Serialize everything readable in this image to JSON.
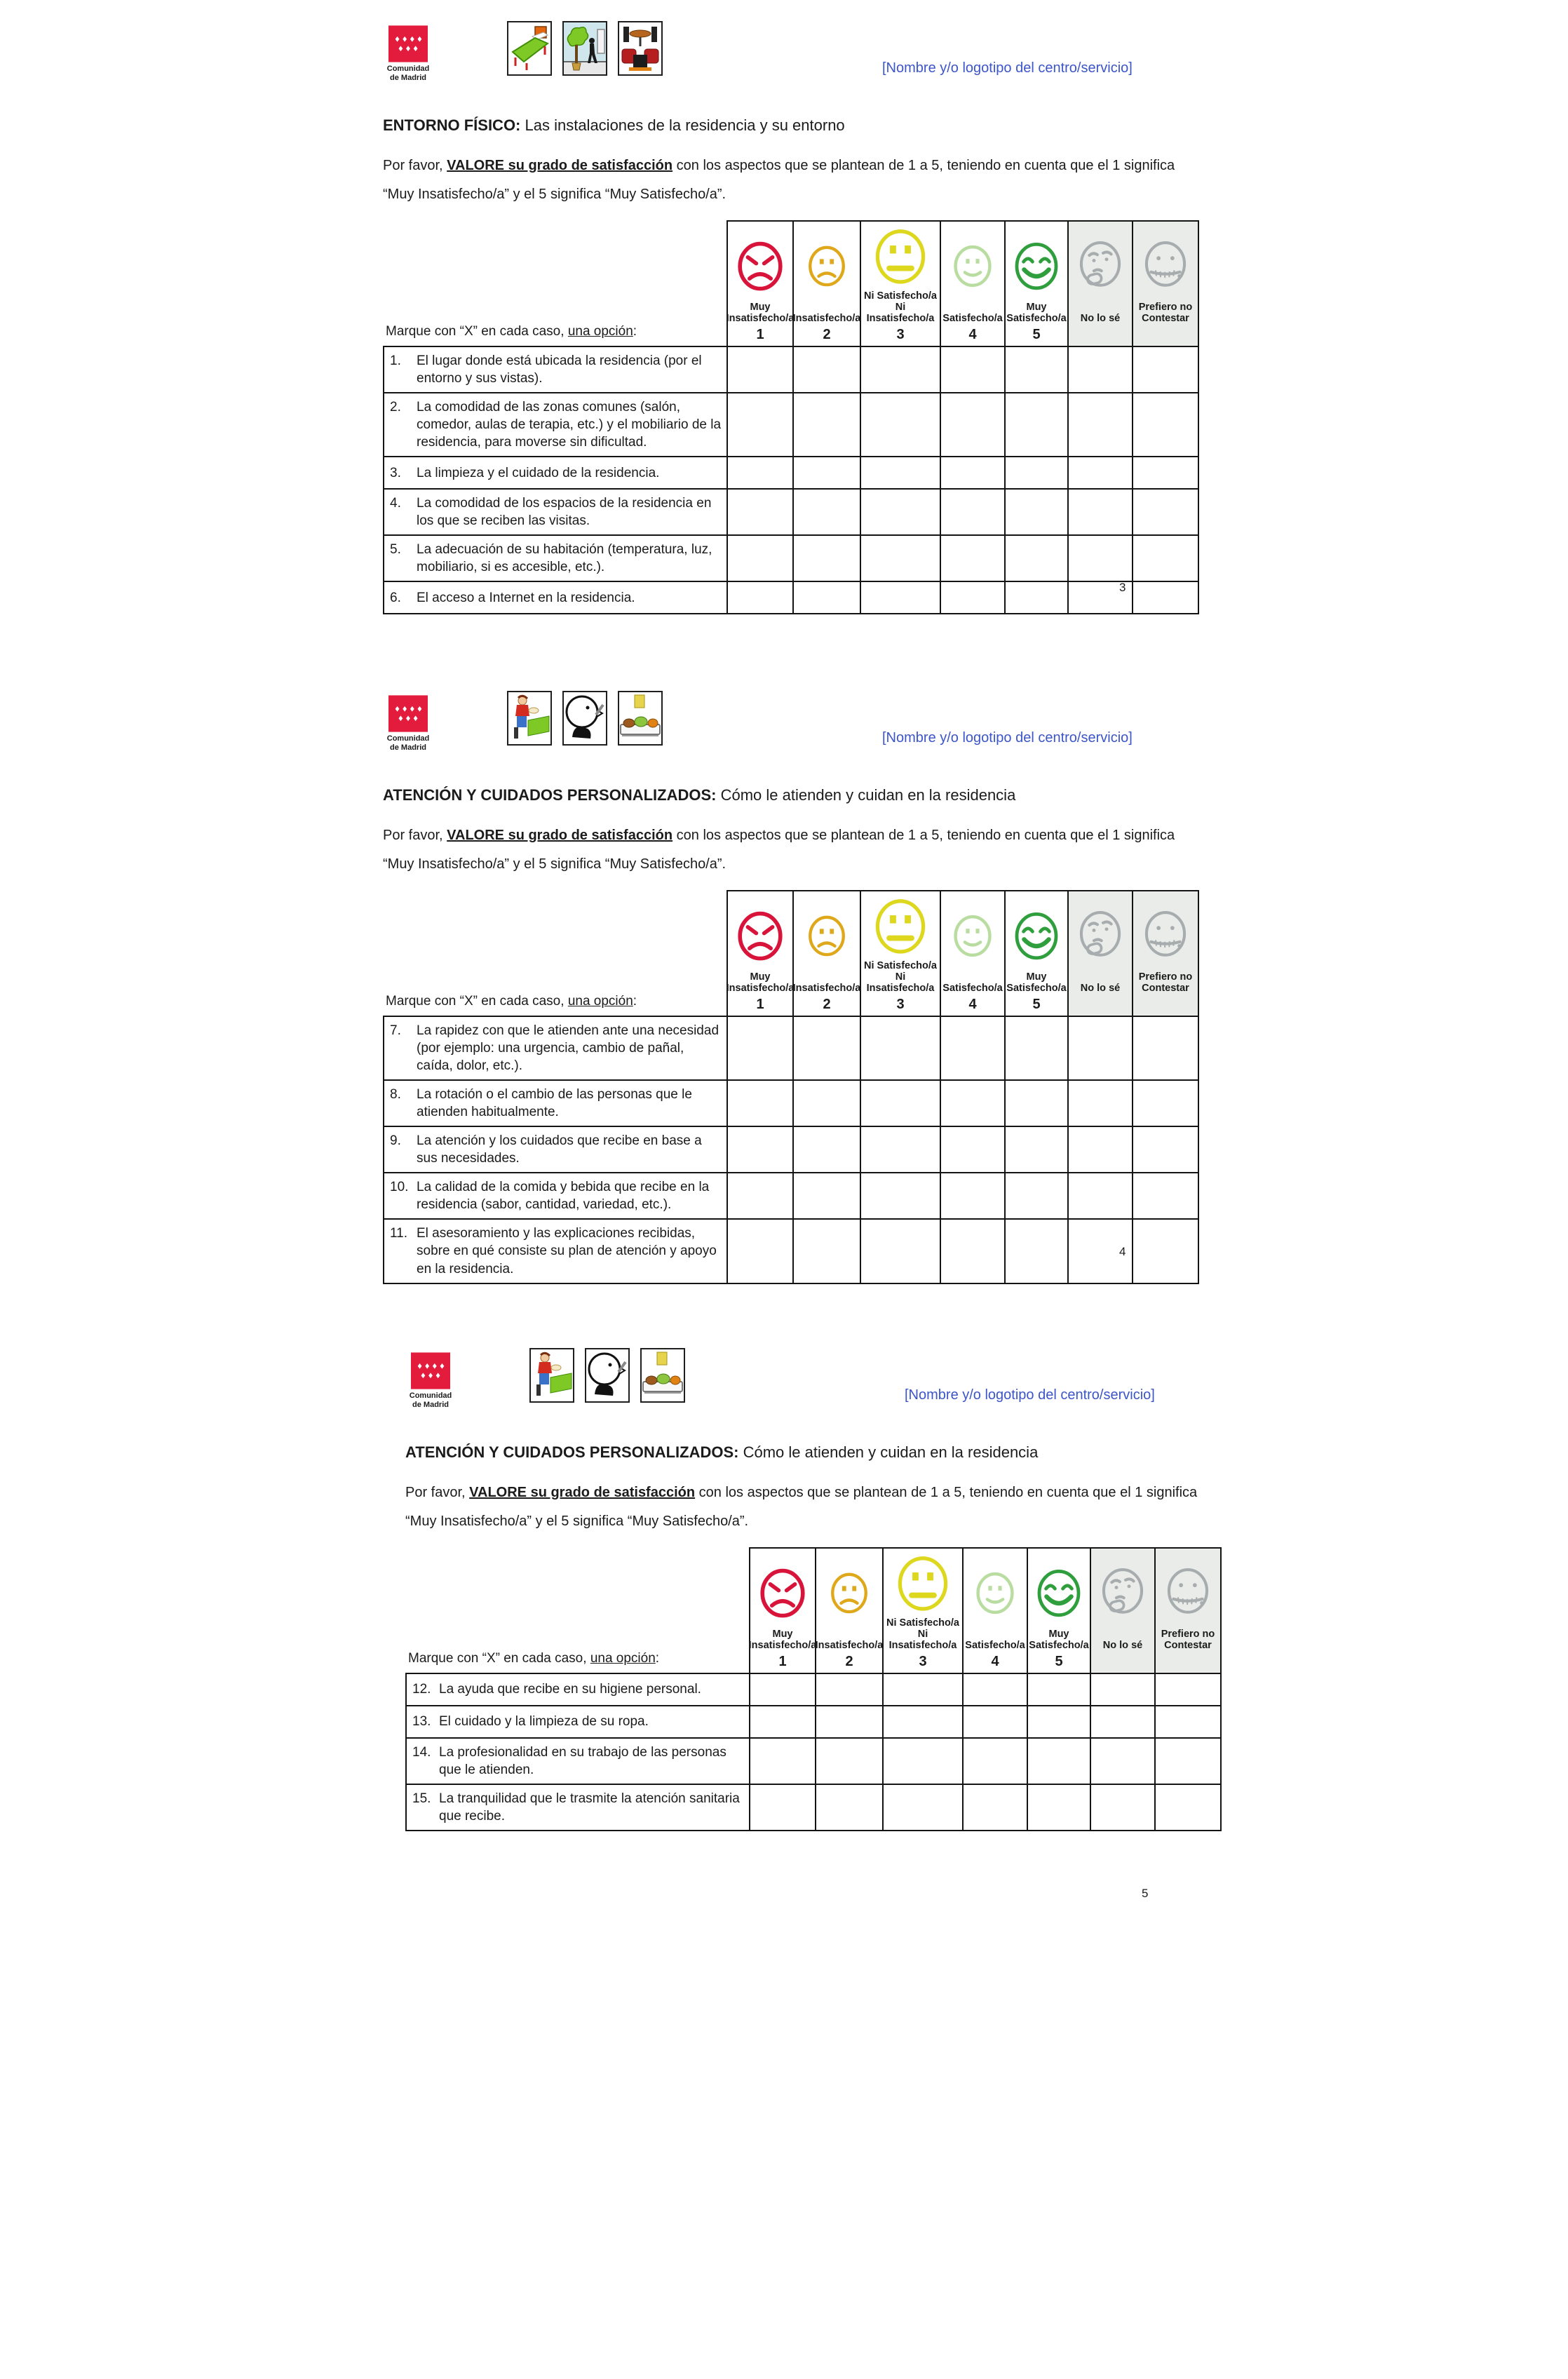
{
  "brand": {
    "name_line1": "Comunidad",
    "name_line2": "de Madrid",
    "flag_color": "#e31b3d"
  },
  "header_note": "[Nombre y/o logotipo del centro/servicio]",
  "header_note_color": "#3c55c8",
  "instructions": {
    "prefix": "Por favor, ",
    "underlined": "VALORE su grado de satisfacción",
    "suffix": " con los aspectos que se plantean de 1 a 5, teniendo en cuenta que el 1 significa “Muy Insatisfecho/a” y el 5 significa “Muy Satisfecho/a”."
  },
  "mark_row": {
    "prefix": "Marque con “X” en cada caso, ",
    "underlined": "una opción",
    "suffix": ":"
  },
  "scale_columns": [
    {
      "icon": "face-angry",
      "color": "#d8143a",
      "label": "Muy\nInsatisfecho/a",
      "number": "1",
      "gray": false
    },
    {
      "icon": "face-sad",
      "color": "#dfa71a",
      "label": "Insatisfecho/a",
      "number": "2",
      "gray": false
    },
    {
      "icon": "face-neutral",
      "color": "#ddd71e",
      "label": "Ni Satisfecho/a\nNi Insatisfecho/a",
      "number": "3",
      "gray": false
    },
    {
      "icon": "face-slight-smile",
      "color": "#b9dda0",
      "label": "Satisfecho/a",
      "number": "4",
      "gray": false
    },
    {
      "icon": "face-grin",
      "color": "#2f9e3c",
      "label": "Muy\nSatisfecho/a",
      "number": "5",
      "gray": false
    },
    {
      "icon": "face-thinking",
      "color": "#a7acae",
      "label": "No lo sé",
      "number": "",
      "gray": true
    },
    {
      "icon": "face-zipper",
      "color": "#a7acae",
      "label": "Prefiero no\nContestar",
      "number": "",
      "gray": true
    }
  ],
  "pages": [
    {
      "page_number": "3",
      "title_bold": "ENTORNO FÍSICO:",
      "title_rest": " Las instalaciones de la residencia y su entorno",
      "pictograms": [
        "picto-bed",
        "picto-outdoor",
        "picto-livingroom"
      ],
      "questions": [
        {
          "num": "1.",
          "text": "El lugar donde está ubicada la residencia (por el entorno y sus vistas)."
        },
        {
          "num": "2.",
          "text": "La comodidad de las zonas comunes (salón, comedor, aulas de terapia, etc.) y el mobiliario de la residencia, para moverse sin dificultad."
        },
        {
          "num": "3.",
          "text": "La limpieza y el cuidado de la residencia."
        },
        {
          "num": "4.",
          "text": "La comodidad de los espacios de la residencia en los que se reciben las visitas."
        },
        {
          "num": "5.",
          "text": "La adecuación de su habitación (temperatura, luz, mobiliario, si es accesible, etc.)."
        },
        {
          "num": "6.",
          "text": "El acceso a Internet en la residencia."
        }
      ]
    },
    {
      "page_number": "4",
      "title_bold": "ATENCIÓN Y CUIDADOS PERSONALIZADOS:",
      "title_rest": " Cómo le atienden y cuidan en la residencia",
      "pictograms": [
        "picto-caregiver",
        "picto-speak",
        "picto-tray"
      ],
      "questions": [
        {
          "num": "7.",
          "text": "La rapidez con que le atienden ante una necesidad (por ejemplo: una urgencia, cambio de pañal, caída, dolor, etc.)."
        },
        {
          "num": "8.",
          "text": "La rotación o el cambio de las personas que le atienden habitualmente."
        },
        {
          "num": "9.",
          "text": "La atención y los cuidados que recibe en base a sus necesidades."
        },
        {
          "num": "10.",
          "text": "La calidad de la comida y bebida que recibe en la residencia (sabor, cantidad, variedad, etc.)."
        },
        {
          "num": "11.",
          "text": "El asesoramiento y las explicaciones recibidas, sobre en qué consiste su plan de atención y apoyo en la residencia."
        }
      ]
    },
    {
      "page_number": "5",
      "title_bold": "ATENCIÓN Y CUIDADOS PERSONALIZADOS:",
      "title_rest": " Cómo le atienden y cuidan en la residencia",
      "pictograms": [
        "picto-caregiver",
        "picto-speak",
        "picto-tray"
      ],
      "questions": [
        {
          "num": "12.",
          "text": "La ayuda que recibe en su higiene personal."
        },
        {
          "num": "13.",
          "text": "El cuidado y la limpieza de su ropa."
        },
        {
          "num": "14.",
          "text": "La profesionalidad en su trabajo de las personas que le atienden."
        },
        {
          "num": "15.",
          "text": "La tranquilidad que le trasmite la atención sanitaria que recibe."
        }
      ]
    }
  ]
}
